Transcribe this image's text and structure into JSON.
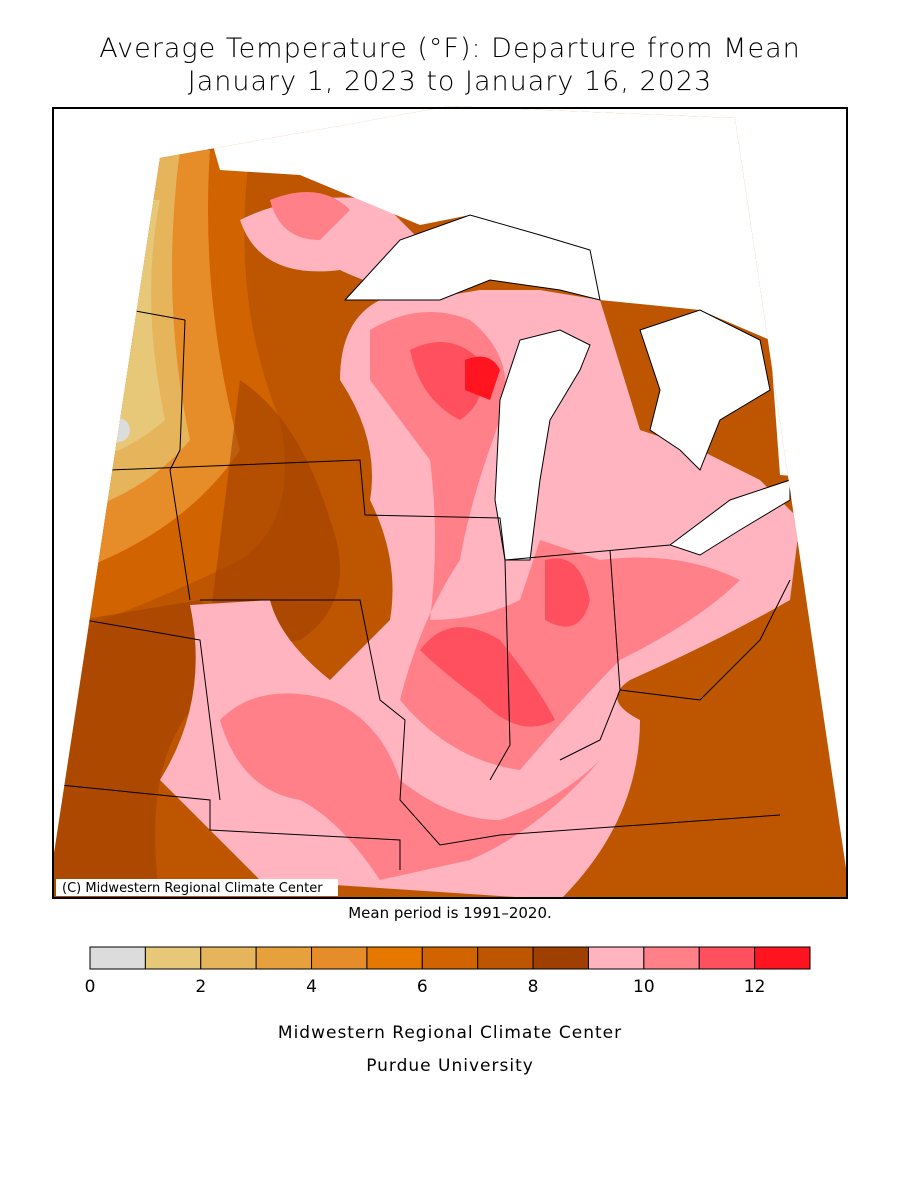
{
  "title": [
    "Average Temperature (°F): Departure from Mean",
    "January 1, 2023 to January 16, 2023"
  ],
  "copyright": "(C) Midwestern Regional Climate Center",
  "note": "Mean period is 1991–2020.",
  "colorbar": {
    "bins": [
      0,
      1,
      2,
      3,
      4,
      5,
      6,
      7,
      8,
      9,
      10,
      11,
      12,
      13
    ],
    "colors": [
      "#dcdcdc",
      "#e6c878",
      "#e6b45a",
      "#e6a03c",
      "#e68c28",
      "#e67800",
      "#d26400",
      "#be5500",
      "#a04000",
      "#ffb4c0",
      "#ff8088",
      "#ff5060",
      "#ff1420"
    ],
    "ticks": [
      0,
      2,
      4,
      6,
      8,
      10,
      12
    ]
  },
  "footer": [
    "Midwestern Regional Climate Center",
    "Purdue University"
  ]
}
